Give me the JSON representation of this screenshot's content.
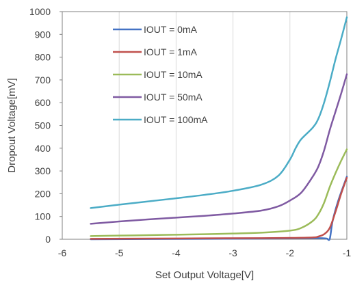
{
  "chart_data": {
    "type": "line",
    "xlabel": "Set Output Voltage[V]",
    "ylabel": "Dropout Voltage[mV]",
    "xlim": [
      -6,
      -1
    ],
    "ylim": [
      0,
      1000
    ],
    "xticks": [
      -6,
      -5,
      -4,
      -3,
      -2,
      -1
    ],
    "yticks": [
      0,
      100,
      200,
      300,
      400,
      500,
      600,
      700,
      800,
      900,
      1000
    ],
    "grid": "vertical",
    "legend": "top-left",
    "series": [
      {
        "name": "IOUT = 0mA",
        "color": "#4472C4",
        "points": [
          [
            -5.5,
            0
          ],
          [
            -4.5,
            1
          ],
          [
            -3.5,
            2
          ],
          [
            -2.5,
            3
          ],
          [
            -2.0,
            4
          ],
          [
            -1.5,
            5
          ],
          [
            -1.4,
            4
          ],
          [
            -1.35,
            3
          ],
          [
            -1.3,
            2
          ],
          [
            -1.25,
            80
          ],
          [
            -1.15,
            170
          ],
          [
            -1.0,
            275
          ]
        ]
      },
      {
        "name": "IOUT = 1mA",
        "color": "#C0504D",
        "points": [
          [
            -5.5,
            2
          ],
          [
            -4.5,
            3
          ],
          [
            -3.5,
            4
          ],
          [
            -2.5,
            5
          ],
          [
            -2.0,
            6
          ],
          [
            -1.6,
            8
          ],
          [
            -1.5,
            12
          ],
          [
            -1.4,
            22
          ],
          [
            -1.3,
            50
          ],
          [
            -1.2,
            120
          ],
          [
            -1.1,
            200
          ],
          [
            -1.0,
            270
          ]
        ]
      },
      {
        "name": "IOUT = 10mA",
        "color": "#9BBB59",
        "points": [
          [
            -5.5,
            14
          ],
          [
            -5.0,
            16
          ],
          [
            -4.5,
            18
          ],
          [
            -4.0,
            20
          ],
          [
            -3.5,
            22
          ],
          [
            -3.0,
            25
          ],
          [
            -2.5,
            29
          ],
          [
            -2.0,
            38
          ],
          [
            -1.8,
            50
          ],
          [
            -1.6,
            80
          ],
          [
            -1.5,
            110
          ],
          [
            -1.4,
            160
          ],
          [
            -1.3,
            230
          ],
          [
            -1.2,
            290
          ],
          [
            -1.1,
            345
          ],
          [
            -1.0,
            395
          ]
        ]
      },
      {
        "name": "IOUT = 50mA",
        "color": "#7F5AA2",
        "points": [
          [
            -5.5,
            68
          ],
          [
            -5.0,
            78
          ],
          [
            -4.5,
            87
          ],
          [
            -4.0,
            95
          ],
          [
            -3.5,
            103
          ],
          [
            -3.0,
            113
          ],
          [
            -2.5,
            126
          ],
          [
            -2.2,
            145
          ],
          [
            -2.0,
            170
          ],
          [
            -1.8,
            205
          ],
          [
            -1.6,
            275
          ],
          [
            -1.5,
            320
          ],
          [
            -1.4,
            390
          ],
          [
            -1.3,
            480
          ],
          [
            -1.2,
            560
          ],
          [
            -1.1,
            640
          ],
          [
            -1.0,
            725
          ]
        ]
      },
      {
        "name": "IOUT = 100mA",
        "color": "#4BACC6",
        "points": [
          [
            -5.5,
            137
          ],
          [
            -5.0,
            152
          ],
          [
            -4.5,
            166
          ],
          [
            -4.0,
            180
          ],
          [
            -3.5,
            195
          ],
          [
            -3.0,
            213
          ],
          [
            -2.5,
            240
          ],
          [
            -2.2,
            280
          ],
          [
            -2.0,
            350
          ],
          [
            -1.9,
            400
          ],
          [
            -1.8,
            440
          ],
          [
            -1.6,
            490
          ],
          [
            -1.5,
            530
          ],
          [
            -1.4,
            600
          ],
          [
            -1.3,
            690
          ],
          [
            -1.2,
            790
          ],
          [
            -1.1,
            880
          ],
          [
            -1.0,
            975
          ]
        ]
      }
    ]
  }
}
